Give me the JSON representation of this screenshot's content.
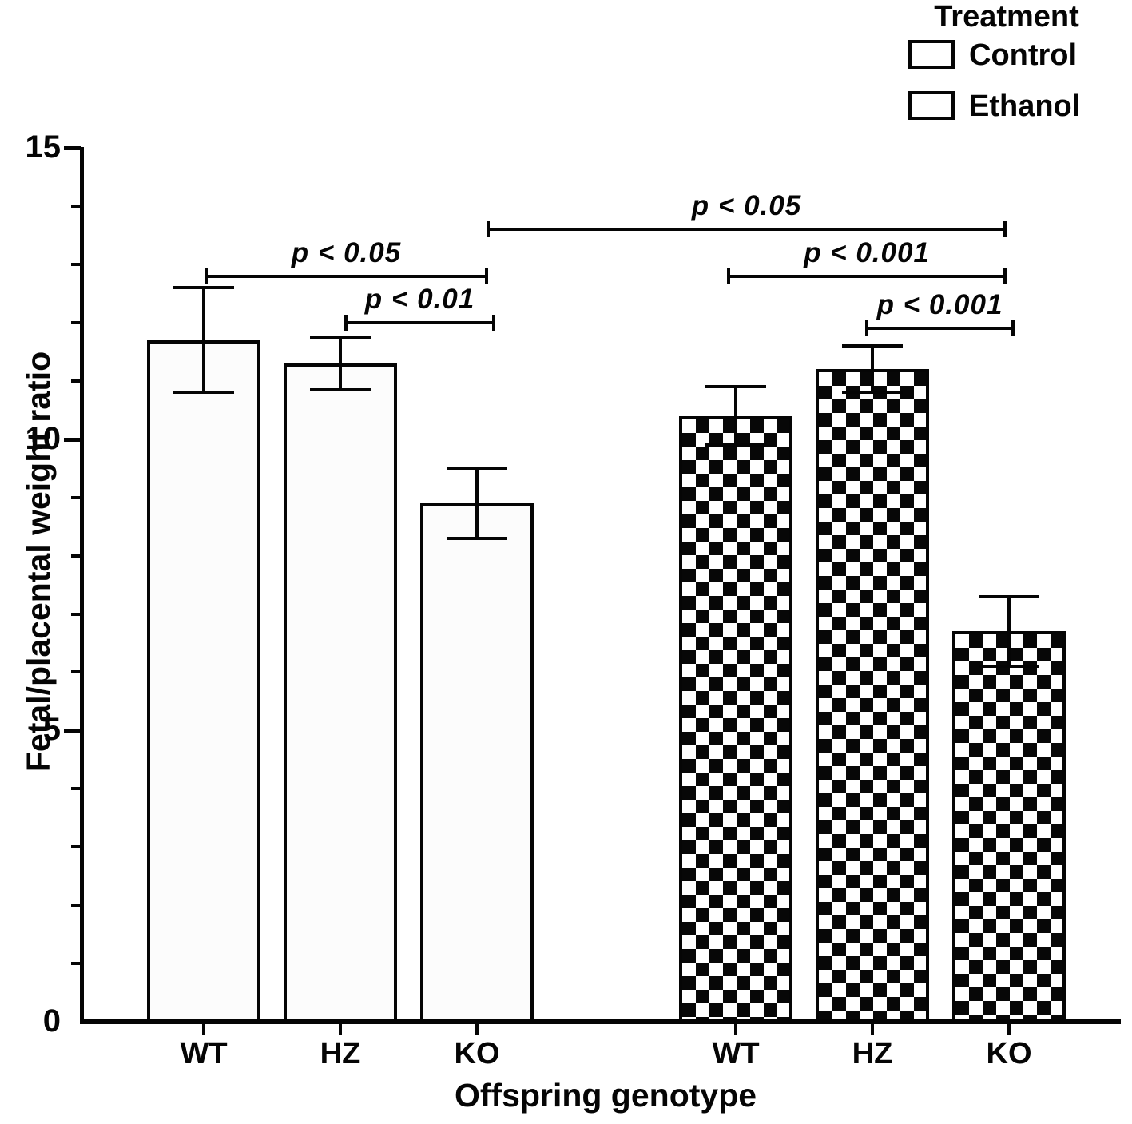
{
  "colors": {
    "ink": "#050505",
    "background": "#ffffff",
    "control_bar_fill": "#fcfcfc",
    "ethanol_pattern": "black-white-checkerboard"
  },
  "legend": {
    "title": "Treatment",
    "entries": [
      {
        "label": "Control",
        "pattern": "open-white-swatch"
      },
      {
        "label": "Ethanol",
        "pattern": "checkerboard-swatch"
      }
    ]
  },
  "chart_data": {
    "type": "bar",
    "title": "",
    "xlabel": "Offspring genotype",
    "ylabel": "Fetal/placental weight ratio",
    "ylim": [
      0,
      15
    ],
    "yticks": [
      {
        "value": 0,
        "label": "0"
      },
      {
        "value": 5,
        "label": "5"
      },
      {
        "value": 10,
        "label": "10"
      },
      {
        "value": 15,
        "label": "15"
      }
    ],
    "yminor_tick_step": 1,
    "grid": false,
    "legend_position": "top-right",
    "categories": [
      "WT",
      "HZ",
      "KO"
    ],
    "series": [
      {
        "name": "Control",
        "fill": "open-white",
        "values": [
          11.7,
          11.3,
          8.9
        ],
        "errors": [
          0.9,
          0.45,
          0.6
        ]
      },
      {
        "name": "Ethanol",
        "fill": "black-white-checkerboard",
        "values": [
          10.4,
          11.2,
          6.7
        ],
        "errors": [
          0.5,
          0.4,
          0.6
        ]
      }
    ],
    "annotations": [
      {
        "label": "p < 0.05",
        "from": {
          "series": "Control",
          "genotype": "WT"
        },
        "to": {
          "series": "Control",
          "genotype": "KO"
        },
        "height": 12.8
      },
      {
        "label": "p < 0.01",
        "from": {
          "series": "Control",
          "genotype": "HZ"
        },
        "to": {
          "series": "Control",
          "genotype": "KO"
        },
        "height": 12.0
      },
      {
        "label": "p < 0.05",
        "from": {
          "series": "Control",
          "genotype": "KO"
        },
        "to": {
          "series": "Ethanol",
          "genotype": "KO"
        },
        "height": 13.6
      },
      {
        "label": "p < 0.001",
        "from": {
          "series": "Ethanol",
          "genotype": "WT"
        },
        "to": {
          "series": "Ethanol",
          "genotype": "KO"
        },
        "height": 12.8
      },
      {
        "label": "p < 0.001",
        "from": {
          "series": "Ethanol",
          "genotype": "HZ"
        },
        "to": {
          "series": "Ethanol",
          "genotype": "KO"
        },
        "height": 11.9
      }
    ]
  }
}
